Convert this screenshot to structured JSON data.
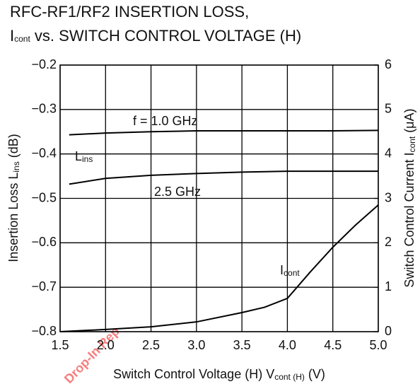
{
  "chart_data": {
    "type": "line",
    "title": [
      [
        "RFC-RF1/RF2 INSERTION LOSS,"
      ],
      [
        "I",
        "cont",
        "  vs. SWITCH CONTROL VOLTAGE (H)"
      ]
    ],
    "x_label": [
      "Switch Control Voltage (H)  V",
      "cont (H)",
      " (V)"
    ],
    "y_label": [
      "Insertion Loss  L",
      "ins",
      " (dB)"
    ],
    "y2_label": [
      "Switch Control Current  I",
      "cont",
      " (μA)"
    ],
    "xlim": [
      1.5,
      5.0
    ],
    "xticks": [
      {
        "value": 1.5,
        "label": "1.5"
      },
      {
        "value": 2,
        "label": "2.0"
      },
      {
        "value": 2.5,
        "label": "2.5"
      },
      {
        "value": 3,
        "label": "3.0"
      },
      {
        "value": 3.5,
        "label": "3.5"
      },
      {
        "value": 4,
        "label": "4.0"
      },
      {
        "value": 4.5,
        "label": "4.5"
      },
      {
        "value": 5,
        "label": "5.0"
      }
    ],
    "ylim": [
      -0.8,
      -0.2
    ],
    "yticks": [
      {
        "value": -0.8,
        "label": "−0.8"
      },
      {
        "value": -0.7,
        "label": "−0.7"
      },
      {
        "value": -0.6,
        "label": "−0.6"
      },
      {
        "value": -0.5,
        "label": "−0.5"
      },
      {
        "value": -0.4,
        "label": "−0.4"
      },
      {
        "value": -0.3,
        "label": "−0.3"
      },
      {
        "value": -0.2,
        "label": "−0.2"
      }
    ],
    "y2lim": [
      0,
      6
    ],
    "y2ticks": [
      0,
      1,
      2,
      3,
      4,
      5,
      6
    ],
    "grid": true,
    "series": [
      {
        "name": "f = 1.0 GHz",
        "color": "#000000",
        "x": [
          1.6,
          2.0,
          2.5,
          3.0,
          3.5,
          4.0,
          4.5,
          5.0
        ],
        "values": [
          -0.357,
          -0.353,
          -0.35,
          -0.348,
          -0.348,
          -0.348,
          -0.348,
          -0.347
        ]
      },
      {
        "name": "2.5 GHz",
        "color": "#000000",
        "x": [
          1.6,
          2.0,
          2.5,
          3.0,
          3.5,
          4.0,
          4.5,
          5.0
        ],
        "values": [
          -0.468,
          -0.455,
          -0.448,
          -0.444,
          -0.441,
          -0.439,
          -0.439,
          -0.439
        ]
      },
      {
        "color": "#000000",
        "axis": "y2",
        "x": [
          1.5,
          2.0,
          2.5,
          3.0,
          3.5,
          3.75,
          4.0,
          4.25,
          4.5,
          4.75,
          5.0
        ],
        "values": [
          0,
          0.05,
          0.11,
          0.22,
          0.43,
          0.55,
          0.75,
          1.34,
          1.9,
          2.4,
          2.85
        ]
      }
    ],
    "annotations": [
      [
        "L",
        "ins"
      ],
      [
        "I",
        "cont"
      ]
    ],
    "watermark": "Drop-In Rep"
  }
}
